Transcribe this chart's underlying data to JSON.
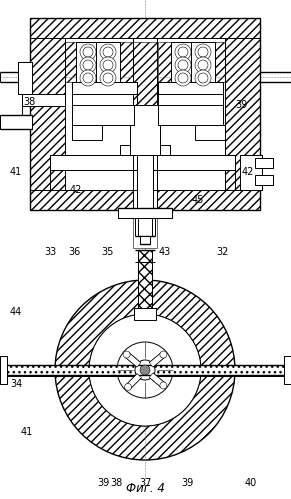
{
  "bg_color": "#ffffff",
  "line_color": "#000000",
  "fig_width": 2.91,
  "fig_height": 4.99,
  "dpi": 100,
  "title": "Фиг. 4",
  "labels_top": {
    "39a": [
      0.355,
      0.967,
      "39"
    ],
    "38": [
      0.4,
      0.967,
      "38"
    ],
    "37": [
      0.5,
      0.967,
      "37"
    ],
    "39b": [
      0.645,
      0.967,
      "39"
    ],
    "40": [
      0.86,
      0.967,
      "40"
    ],
    "41a": [
      0.09,
      0.865,
      "41"
    ],
    "34": [
      0.055,
      0.77,
      "34"
    ],
    "44": [
      0.055,
      0.625,
      "44"
    ],
    "33": [
      0.175,
      0.505,
      "33"
    ],
    "36": [
      0.255,
      0.505,
      "36"
    ],
    "35": [
      0.37,
      0.505,
      "35"
    ],
    "43": [
      0.565,
      0.505,
      "43"
    ],
    "32": [
      0.765,
      0.505,
      "32"
    ]
  },
  "labels_bot": {
    "42a": [
      0.26,
      0.38,
      "42"
    ],
    "41b": [
      0.055,
      0.345,
      "41"
    ],
    "45": [
      0.68,
      0.4,
      "45"
    ],
    "42b": [
      0.85,
      0.345,
      "42"
    ],
    "38b": [
      0.1,
      0.205,
      "38"
    ],
    "39c": [
      0.83,
      0.21,
      "39"
    ]
  }
}
